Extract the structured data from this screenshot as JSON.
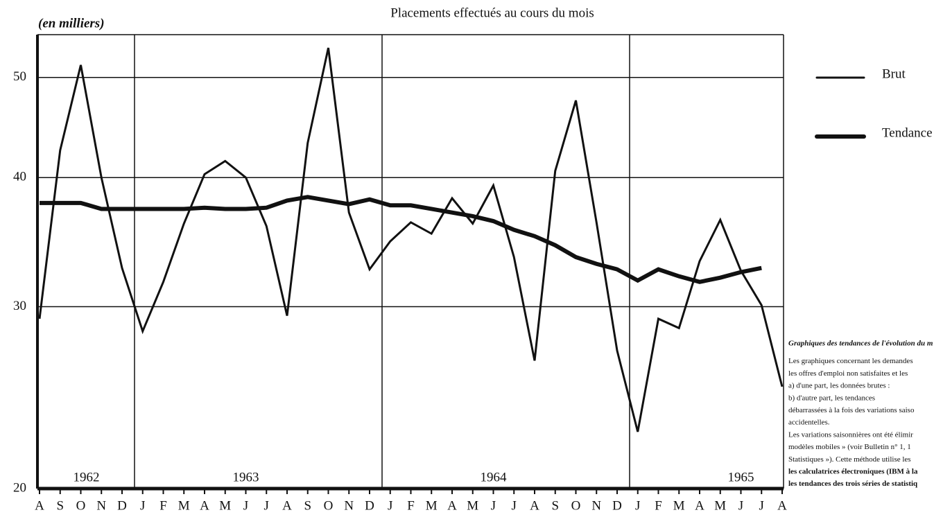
{
  "chart_data": {
    "type": "line",
    "title": "Placements effectués au cours du mois",
    "y_axis_label": "(en milliers)",
    "categories": [
      "A",
      "S",
      "O",
      "N",
      "D",
      "J",
      "F",
      "M",
      "A",
      "M",
      "J",
      "J",
      "A",
      "S",
      "O",
      "N",
      "D",
      "J",
      "F",
      "M",
      "A",
      "M",
      "J",
      "J",
      "A",
      "S",
      "O",
      "N",
      "D",
      "J",
      "F",
      "M",
      "A",
      "M",
      "J",
      "J",
      "A"
    ],
    "series": [
      {
        "name": "Brut",
        "color": "#111111",
        "values": [
          29.2,
          42.5,
          51.4,
          40,
          32.7,
          28.4,
          31.7,
          36.1,
          40.3,
          41.5,
          40,
          35.9,
          29.4,
          43.2,
          53.4,
          37.0,
          32.6,
          34.7,
          36.2,
          35.3,
          38.2,
          36.1,
          39.3,
          33.5,
          26.6,
          40.6,
          47.5,
          36.2,
          27.2,
          22.7,
          29.2,
          28.6,
          33.2,
          36.4,
          32.5,
          30.1,
          25.1
        ]
      },
      {
        "name": "Tendance",
        "color": "#111111",
        "values": [
          37.8,
          37.8,
          37.8,
          37.3,
          37.3,
          37.3,
          37.3,
          37.3,
          37.4,
          37.3,
          37.3,
          37.4,
          38.0,
          38.3,
          38.0,
          37.7,
          38.1,
          37.6,
          37.6,
          37.3,
          37.0,
          36.7,
          36.3,
          35.6,
          35.1,
          34.4,
          33.5,
          33.0,
          32.6,
          31.8,
          32.6,
          32.1,
          31.7,
          32.0,
          32.4,
          32.7,
          null
        ]
      }
    ],
    "annotations": [
      "1962",
      "1963",
      "1964",
      "1965"
    ],
    "ylim": [
      20,
      55
    ],
    "yticks": [
      20,
      30,
      40,
      50
    ],
    "log_scale": true,
    "grid": true,
    "legend_position": "right",
    "side_note": [
      "Graphiques des tendances de l'évolution du m",
      "Les graphiques concernant les demandes",
      "les offres d'emploi non satisfaites et les",
      "a) d'une part, les données brutes :",
      "b) d'autre part, les tendances",
      "débarrassées à la fois des variations saiso",
      "accidentelles.",
      "Les variations saisonnières ont été élimir",
      "modèles mobiles » (voir Bulletin n° 1, 1",
      "Statistiques »). Cette méthode utilise les",
      "les calculatrices électroniques (IBM à la",
      "les tendances des trois séries de statistiq"
    ]
  }
}
